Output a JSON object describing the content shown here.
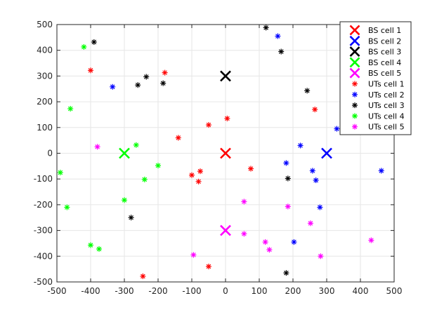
{
  "chart_data": {
    "type": "scatter",
    "title": "",
    "xlabel": "",
    "ylabel": "",
    "xlim": [
      -500,
      500
    ],
    "ylim": [
      -500,
      500
    ],
    "xticks": [
      -500,
      -400,
      -300,
      -200,
      -100,
      0,
      100,
      200,
      300,
      400,
      500
    ],
    "yticks": [
      -500,
      -400,
      -300,
      -200,
      -100,
      0,
      100,
      200,
      300,
      400,
      500
    ],
    "grid": true,
    "legend_position": "top-right",
    "series": [
      {
        "name": "BS cell 1",
        "marker": "x-large",
        "color": "#ff0000",
        "points": [
          [
            0,
            0
          ]
        ]
      },
      {
        "name": "BS cell 2",
        "marker": "x-large",
        "color": "#0000ff",
        "points": [
          [
            300,
            0
          ]
        ]
      },
      {
        "name": "BS cell 3",
        "marker": "x-large",
        "color": "#000000",
        "points": [
          [
            0,
            300
          ]
        ]
      },
      {
        "name": "BS cell 4",
        "marker": "x-large",
        "color": "#00ff00",
        "points": [
          [
            -300,
            0
          ]
        ]
      },
      {
        "name": "BS cell 5",
        "marker": "x-large",
        "color": "#ff00ff",
        "points": [
          [
            0,
            -300
          ]
        ]
      },
      {
        "name": "UTs cell 1",
        "marker": "asterisk",
        "color": "#ff0000",
        "points": [
          [
            -400,
            322
          ],
          [
            -180,
            313
          ],
          [
            -140,
            60
          ],
          [
            -50,
            110
          ],
          [
            5,
            135
          ],
          [
            265,
            170
          ],
          [
            -100,
            -85
          ],
          [
            -75,
            -70
          ],
          [
            -80,
            -110
          ],
          [
            75,
            -60
          ],
          [
            -50,
            -440
          ],
          [
            -245,
            -478
          ]
        ]
      },
      {
        "name": "UTs cell 2",
        "marker": "asterisk",
        "color": "#0000ff",
        "points": [
          [
            -335,
            258
          ],
          [
            155,
            455
          ],
          [
            330,
            95
          ],
          [
            222,
            30
          ],
          [
            180,
            -38
          ],
          [
            258,
            -68
          ],
          [
            268,
            -105
          ],
          [
            280,
            -210
          ],
          [
            462,
            -68
          ],
          [
            203,
            -345
          ]
        ]
      },
      {
        "name": "UTs cell 3",
        "marker": "asterisk",
        "color": "#000000",
        "points": [
          [
            -390,
            432
          ],
          [
            -235,
            297
          ],
          [
            -260,
            265
          ],
          [
            -185,
            272
          ],
          [
            120,
            488
          ],
          [
            165,
            395
          ],
          [
            242,
            243
          ],
          [
            185,
            -98
          ],
          [
            -280,
            -250
          ],
          [
            180,
            -465
          ]
        ]
      },
      {
        "name": "UTs cell 4",
        "marker": "asterisk",
        "color": "#00ff00",
        "points": [
          [
            -420,
            413
          ],
          [
            -460,
            173
          ],
          [
            -265,
            32
          ],
          [
            -200,
            -48
          ],
          [
            -240,
            -102
          ],
          [
            -300,
            -182
          ],
          [
            -490,
            -75
          ],
          [
            -470,
            -210
          ],
          [
            -400,
            -357
          ],
          [
            -375,
            -372
          ]
        ]
      },
      {
        "name": "UTs cell 5",
        "marker": "asterisk",
        "color": "#ff00ff",
        "points": [
          [
            -380,
            25
          ],
          [
            55,
            -188
          ],
          [
            185,
            -207
          ],
          [
            55,
            -313
          ],
          [
            118,
            -345
          ],
          [
            130,
            -375
          ],
          [
            -95,
            -395
          ],
          [
            252,
            -272
          ],
          [
            282,
            -400
          ],
          [
            432,
            -338
          ]
        ]
      }
    ]
  }
}
